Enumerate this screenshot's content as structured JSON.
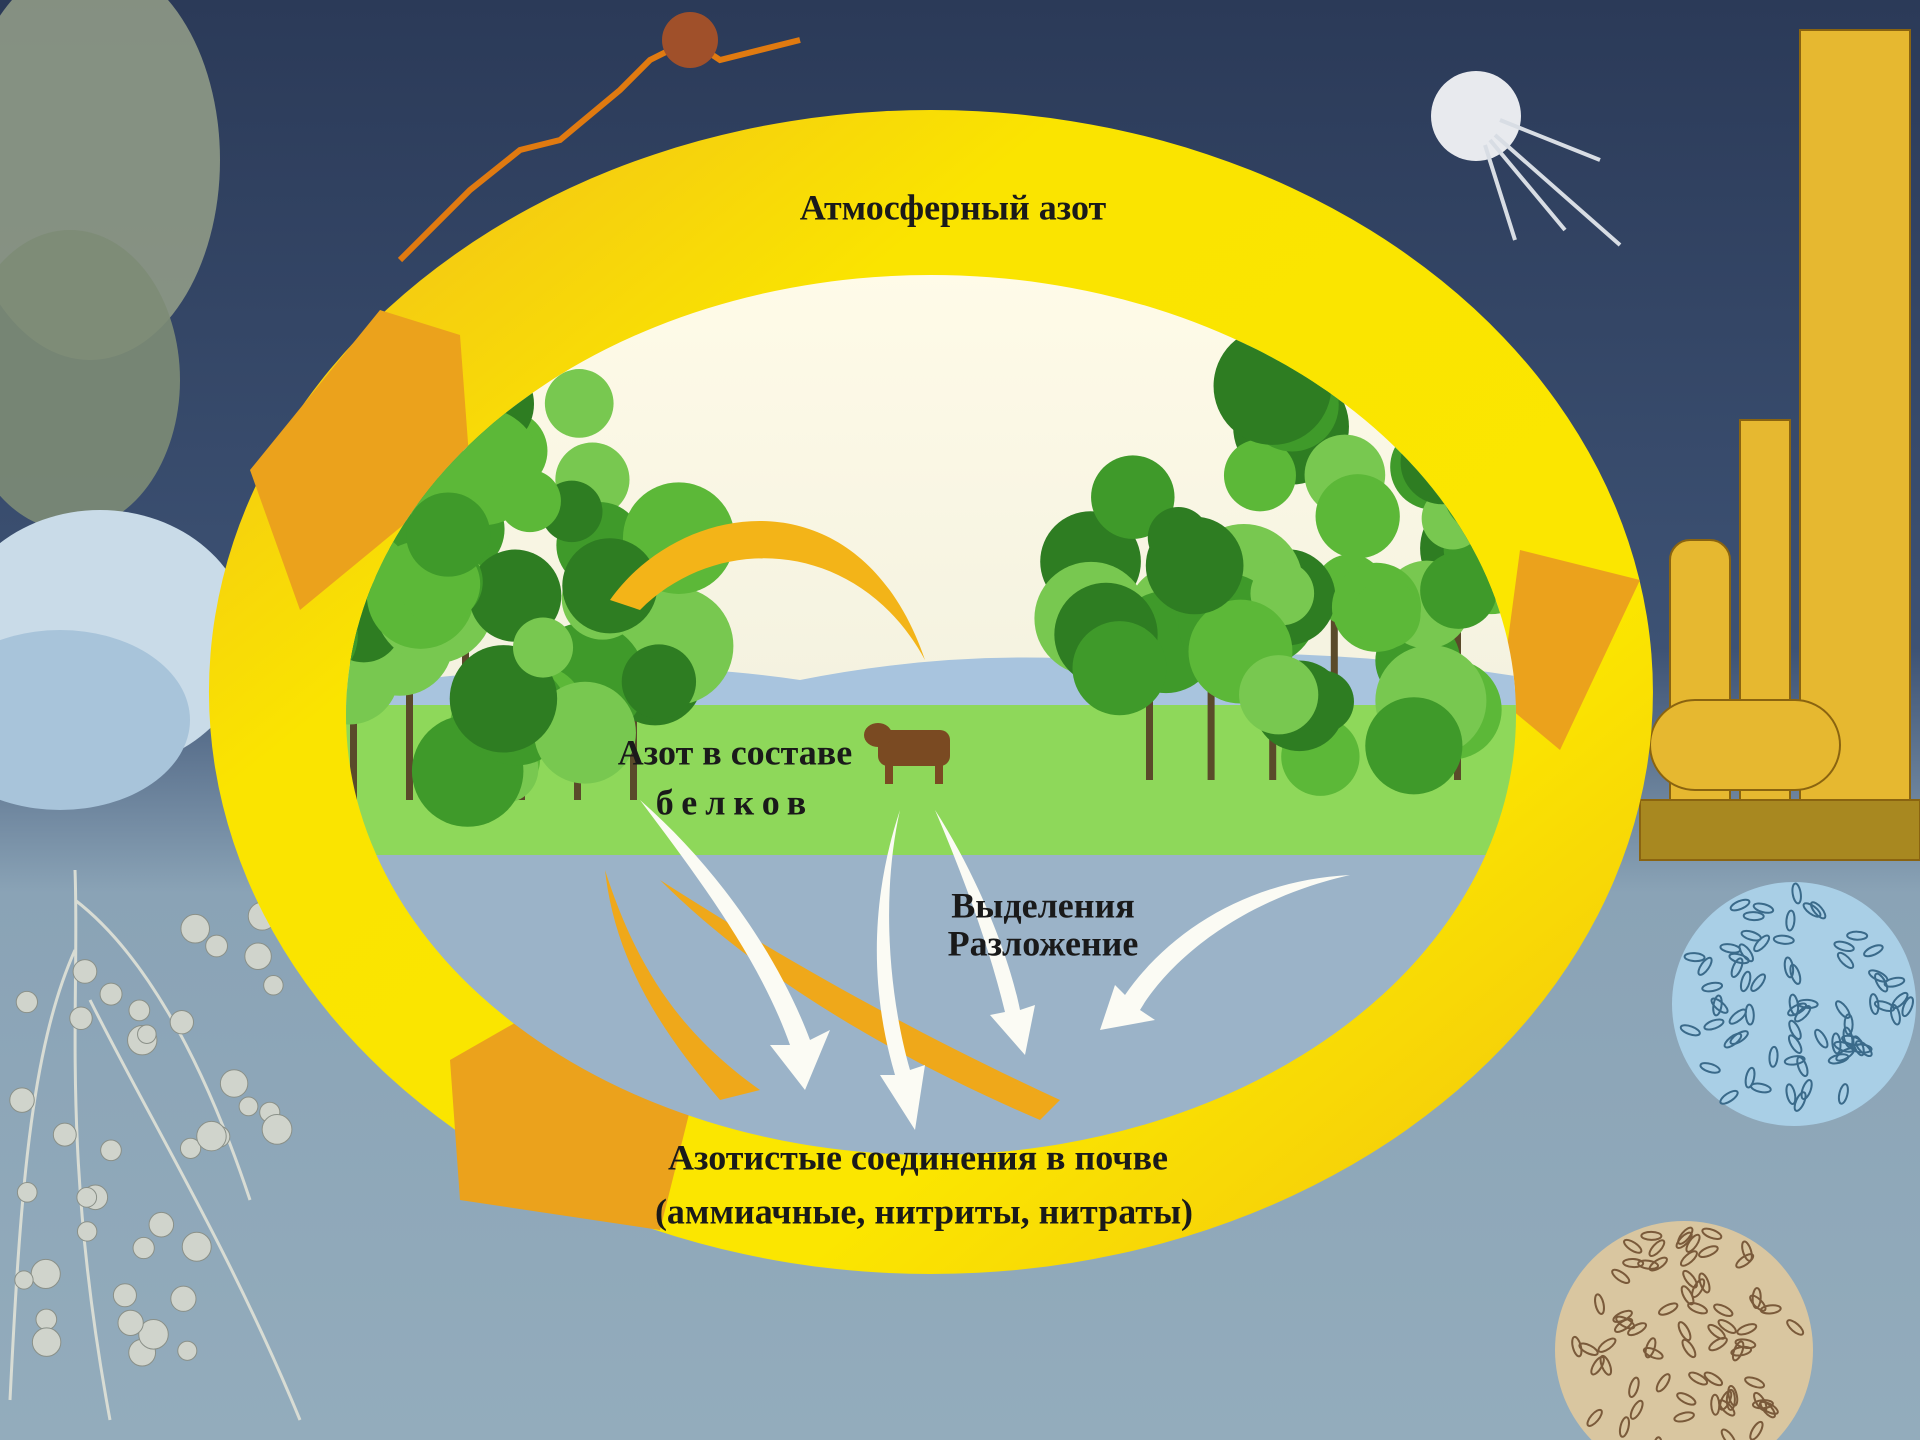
{
  "labels": {
    "atmospheric_nitrogen": "Атмосферный азот",
    "protein_nitrogen": [
      "Азот в составе",
      "белков"
    ],
    "excretion_decomposition": [
      "Выделения",
      "Разложение"
    ],
    "soil_compounds": [
      "Азотистые соединения в почве",
      "(аммиачные, нитриты, нитраты)"
    ]
  }
}
